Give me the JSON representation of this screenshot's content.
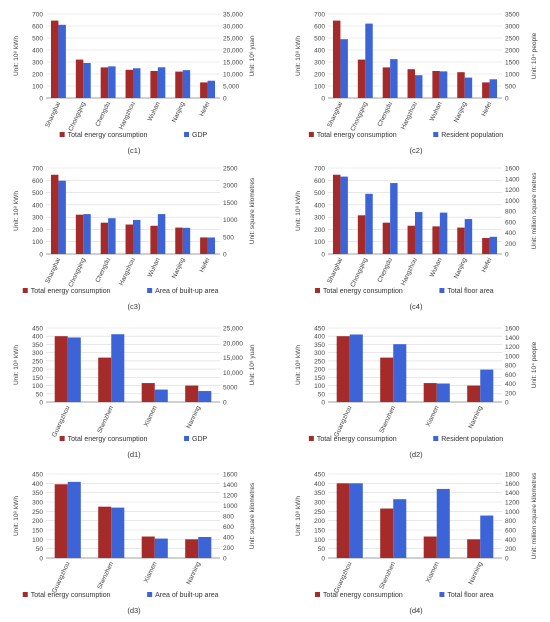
{
  "chart_data": [
    {
      "id": "c1",
      "caption": "(c1)",
      "type": "bar",
      "categories": [
        "Shanghai",
        "Chongqing",
        "Chengdu",
        "Hangzhou",
        "Wuhan",
        "Nanjing",
        "Hefei"
      ],
      "left_axis": {
        "label": "Unit: 10⁸ kWh",
        "ticks": [
          "0",
          "100",
          "200",
          "300",
          "400",
          "500",
          "600",
          "700"
        ],
        "max": 700
      },
      "right_axis": {
        "label": "Unit: 10⁸ yuan",
        "ticks": [
          "0",
          "5,000",
          "10,000",
          "15,000",
          "20,000",
          "25,000",
          "30,000",
          "35,000"
        ],
        "max": 35000
      },
      "series": [
        {
          "name": "Total energy consumption",
          "axis": "left",
          "color": "#a52a2a",
          "values": [
            645,
            320,
            255,
            235,
            225,
            220,
            130
          ]
        },
        {
          "name": "GDP",
          "axis": "right",
          "color": "#3d64d6",
          "values": [
            30500,
            14600,
            13200,
            12400,
            12800,
            11600,
            7200
          ]
        }
      ]
    },
    {
      "id": "c2",
      "caption": "(c2)",
      "type": "bar",
      "categories": [
        "Shanghai",
        "Chongqing",
        "Chengdu",
        "Hangzhou",
        "Wuhan",
        "Nanjing",
        "Hefei"
      ],
      "left_axis": {
        "label": "Unit: 10⁸ kWh",
        "ticks": [
          "0",
          "100",
          "200",
          "300",
          "400",
          "500",
          "600",
          "700"
        ],
        "max": 700
      },
      "right_axis": {
        "label": "Unit: 10⁴ people",
        "ticks": [
          "0",
          "500",
          "1000",
          "1500",
          "2000",
          "2500",
          "3000",
          "3500"
        ],
        "max": 3500
      },
      "series": [
        {
          "name": "Total energy consumption",
          "axis": "left",
          "color": "#a52a2a",
          "values": [
            645,
            320,
            255,
            240,
            225,
            215,
            130
          ]
        },
        {
          "name": "Resident population",
          "axis": "right",
          "color": "#3d64d6",
          "values": [
            2450,
            3100,
            1620,
            950,
            1110,
            850,
            780
          ]
        }
      ]
    },
    {
      "id": "c3",
      "caption": "(c3)",
      "type": "bar",
      "categories": [
        "Shanghai",
        "Chongqing",
        "Chengdu",
        "Hangzhou",
        "Wuhan",
        "Nanjing",
        "Hefei"
      ],
      "left_axis": {
        "label": "Unit: 10⁸ kWh",
        "ticks": [
          "0",
          "100",
          "200",
          "300",
          "400",
          "500",
          "600",
          "700"
        ],
        "max": 700
      },
      "right_axis": {
        "label": "Unit: square kilometres",
        "ticks": [
          "0",
          "500",
          "1000",
          "1500",
          "2000",
          "2500"
        ],
        "max": 2500
      },
      "series": [
        {
          "name": "Total energy consumption",
          "axis": "left",
          "color": "#a52a2a",
          "values": [
            645,
            320,
            255,
            240,
            230,
            215,
            135
          ]
        },
        {
          "name": "Area of built-up area",
          "axis": "right",
          "color": "#3d64d6",
          "values": [
            2130,
            1160,
            1040,
            990,
            1160,
            760,
            480
          ]
        }
      ]
    },
    {
      "id": "c4",
      "caption": "(c4)",
      "type": "bar",
      "categories": [
        "Shanghai",
        "Chongqing",
        "Chengdu",
        "Hangzhou",
        "Wuhan",
        "Nanjing",
        "Hefei"
      ],
      "left_axis": {
        "label": "Unit: 10⁸ kWh",
        "ticks": [
          "0",
          "100",
          "200",
          "300",
          "400",
          "500",
          "600",
          "700"
        ],
        "max": 700
      },
      "right_axis": {
        "label": "Unit: million square metres",
        "ticks": [
          "0",
          "200",
          "400",
          "600",
          "800",
          "1000",
          "1200",
          "1400",
          "1600"
        ],
        "max": 1600
      },
      "series": [
        {
          "name": "Total energy consumption",
          "axis": "left",
          "color": "#a52a2a",
          "values": [
            645,
            315,
            255,
            230,
            225,
            215,
            130
          ]
        },
        {
          "name": "Total floor area",
          "axis": "right",
          "color": "#3d64d6",
          "values": [
            1440,
            1120,
            1320,
            780,
            770,
            650,
            320
          ]
        }
      ]
    },
    {
      "id": "d1",
      "caption": "(d1)",
      "type": "bar",
      "categories": [
        "Guangzhou",
        "Shenzhen",
        "Xiamen",
        "Nanning"
      ],
      "left_axis": {
        "label": "Unit: 10⁸ kWh",
        "ticks": [
          "0",
          "50",
          "100",
          "150",
          "200",
          "250",
          "300",
          "350",
          "400",
          "450"
        ],
        "max": 450
      },
      "right_axis": {
        "label": "Unit: 10⁸ yuan",
        "ticks": [
          "0",
          "5000",
          "10,000",
          "15,000",
          "20,000",
          "25,000"
        ],
        "max": 25000
      },
      "series": [
        {
          "name": "Total energy consumption",
          "axis": "left",
          "color": "#a52a2a",
          "values": [
            400,
            270,
            115,
            100
          ]
        },
        {
          "name": "GDP",
          "axis": "right",
          "color": "#3d64d6",
          "values": [
            21800,
            22900,
            4200,
            3700
          ]
        }
      ]
    },
    {
      "id": "d2",
      "caption": "(d2)",
      "type": "bar",
      "categories": [
        "Guangzhou",
        "Shenzhen",
        "Xiamen",
        "Nanning"
      ],
      "left_axis": {
        "label": "Unit: 10⁸ kWh",
        "ticks": [
          "0",
          "50",
          "100",
          "150",
          "200",
          "250",
          "300",
          "350",
          "400",
          "450"
        ],
        "max": 450
      },
      "right_axis": {
        "label": "Unit: 10⁴ people",
        "ticks": [
          "0",
          "200",
          "400",
          "600",
          "800",
          "1000",
          "1200",
          "1400",
          "1600"
        ],
        "max": 1600
      },
      "series": [
        {
          "name": "Total energy consumption",
          "axis": "left",
          "color": "#a52a2a",
          "values": [
            400,
            270,
            115,
            100
          ]
        },
        {
          "name": "Resident population",
          "axis": "right",
          "color": "#3d64d6",
          "values": [
            1460,
            1250,
            400,
            700
          ]
        }
      ]
    },
    {
      "id": "d3",
      "caption": "(d3)",
      "type": "bar",
      "categories": [
        "Guangzhou",
        "Shenzhen",
        "Xiamen",
        "Nanning"
      ],
      "left_axis": {
        "label": "Unit: 10⁸ kWh",
        "ticks": [
          "0",
          "50",
          "100",
          "150",
          "200",
          "250",
          "300",
          "350",
          "400",
          "450"
        ],
        "max": 450
      },
      "right_axis": {
        "label": "Unit: square kilometres",
        "ticks": [
          "0",
          "200",
          "400",
          "600",
          "800",
          "1000",
          "1200",
          "1400",
          "1600"
        ],
        "max": 1600
      },
      "series": [
        {
          "name": "Total energy consumption",
          "axis": "left",
          "color": "#a52a2a",
          "values": [
            395,
            275,
            115,
            100
          ]
        },
        {
          "name": "Area of built-up area",
          "axis": "right",
          "color": "#3d64d6",
          "values": [
            1450,
            960,
            370,
            400
          ]
        }
      ]
    },
    {
      "id": "d4",
      "caption": "(d4)",
      "type": "bar",
      "categories": [
        "Guangzhou",
        "Shenzhen",
        "Xiamen",
        "Nanning"
      ],
      "left_axis": {
        "label": "Unit: 10⁸ kWh",
        "ticks": [
          "0",
          "50",
          "100",
          "150",
          "200",
          "250",
          "300",
          "350",
          "400",
          "450"
        ],
        "max": 450
      },
      "right_axis": {
        "label": "Unit: million square kilometres",
        "ticks": [
          "0",
          "200",
          "400",
          "600",
          "800",
          "1000",
          "1200",
          "1400",
          "1600",
          "1800"
        ],
        "max": 1800
      },
      "series": [
        {
          "name": "Total energy consumption",
          "axis": "left",
          "color": "#a52a2a",
          "values": [
            400,
            265,
            115,
            100
          ]
        },
        {
          "name": "Total floor area",
          "axis": "right",
          "color": "#3d64d6",
          "values": [
            1600,
            1260,
            1480,
            910
          ]
        }
      ]
    }
  ]
}
